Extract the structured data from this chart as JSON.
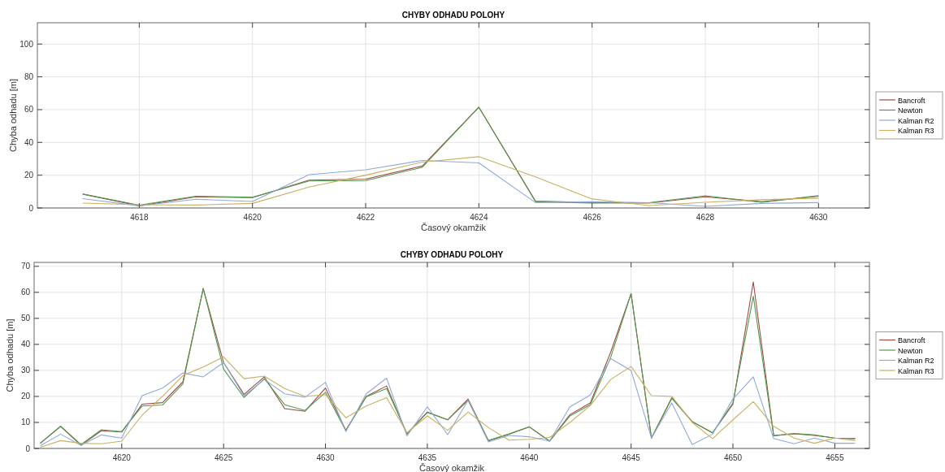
{
  "chart_data": [
    {
      "type": "line",
      "title": "CHYBY ODHADU POLOHY",
      "xlabel": "Časový okamžik",
      "ylabel": "Chyba odhadu [m]",
      "x": [
        4617,
        4618,
        4619,
        4620,
        4621,
        4622,
        4623,
        4624,
        4625,
        4626,
        4627,
        4628,
        4629,
        4630
      ],
      "xlim": [
        4616.2,
        4630.9
      ],
      "ylim": [
        0,
        113
      ],
      "xticks": [
        4618,
        4620,
        4622,
        4624,
        4626,
        4628,
        4630
      ],
      "yticks": [
        0,
        20,
        40,
        60,
        80,
        100
      ],
      "grid": true,
      "legend": "right",
      "line_style": "solid",
      "series": [
        {
          "name": "Bancroft",
          "color": "#9e4a40",
          "values": [
            8.5,
            1.3,
            6.8,
            6.3,
            17,
            17.6,
            25.6,
            61.5,
            4.2,
            3.3,
            3,
            6.8,
            3.8,
            7.2
          ]
        },
        {
          "name": "Newton",
          "color": "#4f9a4f",
          "values": [
            8.5,
            1.7,
            7.2,
            6.5,
            16.5,
            16.7,
            24.8,
            61.5,
            3.8,
            3,
            3.2,
            7.4,
            3.5,
            7.5
          ]
        },
        {
          "name": "Kalman R2",
          "color": "#8fa9d8",
          "values": [
            5.7,
            1.3,
            5.3,
            4,
            20.3,
            23.3,
            29,
            27.5,
            3.3,
            3.8,
            3.2,
            1,
            2.8,
            3.3
          ]
        },
        {
          "name": "Kalman R3",
          "color": "#c8b060",
          "values": [
            3,
            2,
            1.8,
            2.8,
            12.8,
            20,
            28,
            31.3,
            19,
            5.5,
            1.5,
            3.5,
            5,
            6
          ]
        }
      ]
    },
    {
      "type": "line",
      "title": "CHYBY ODHADU POLOHY",
      "xlabel": "Časový okamžik",
      "ylabel": "Chyba odhadu [m]",
      "x": [
        4616,
        4617,
        4618,
        4619,
        4620,
        4621,
        4622,
        4623,
        4624,
        4625,
        4626,
        4627,
        4628,
        4629,
        4630,
        4631,
        4632,
        4633,
        4634,
        4635,
        4636,
        4637,
        4638,
        4639,
        4640,
        4641,
        4642,
        4643,
        4644,
        4645,
        4646,
        4647,
        4648,
        4649,
        4650,
        4651,
        4652,
        4653,
        4654,
        4655,
        4656
      ],
      "xlim": [
        4615.7,
        4656.7
      ],
      "ylim": [
        0,
        71.5
      ],
      "xticks": [
        4620,
        4625,
        4630,
        4635,
        4640,
        4645,
        4650,
        4655
      ],
      "yticks": [
        0,
        10,
        20,
        30,
        40,
        50,
        60,
        70
      ],
      "grid": true,
      "legend": "right",
      "line_style": "solid",
      "series": [
        {
          "name": "Bancroft",
          "color": "#9e4a40",
          "values": [
            2,
            8.5,
            1.2,
            6.8,
            6.3,
            17,
            17.6,
            25.6,
            61.5,
            33,
            20.8,
            27.5,
            15.3,
            14.3,
            23.2,
            7,
            20,
            24,
            5.5,
            14,
            11,
            19,
            3,
            5.5,
            8.3,
            2.8,
            13,
            17.5,
            37,
            59.5,
            4,
            19.5,
            10.3,
            6,
            17,
            64,
            5,
            5.6,
            5,
            4,
            3.8
          ]
        },
        {
          "name": "Newton",
          "color": "#4f9a4f",
          "values": [
            2,
            8.5,
            1.5,
            7.2,
            6.5,
            16.3,
            16.7,
            24.8,
            61.5,
            30.5,
            19.6,
            26.8,
            16.8,
            14.6,
            21.6,
            6.8,
            19.8,
            23,
            5.8,
            13.8,
            11,
            18.5,
            3,
            5.5,
            8.3,
            2.8,
            12.5,
            16.8,
            35,
            59.5,
            4,
            19.2,
            10.3,
            6,
            17.5,
            58.5,
            4.8,
            5.8,
            5.2,
            4,
            3.8
          ]
        },
        {
          "name": "Kalman R2",
          "color": "#8fa9d8",
          "values": [
            1,
            5.5,
            1.2,
            5.2,
            4,
            20.3,
            23.2,
            29,
            27.5,
            33,
            20.2,
            26.5,
            21,
            19.7,
            25.4,
            6.5,
            21,
            27,
            4.8,
            16,
            5.3,
            18.5,
            2.5,
            5,
            4.5,
            2.8,
            16,
            20.5,
            34.5,
            30,
            4,
            17.5,
            1.5,
            5.5,
            19,
            27.5,
            3.8,
            1.8,
            4,
            2,
            2
          ]
        },
        {
          "name": "Kalman R3",
          "color": "#c8b060",
          "values": [
            0.5,
            3,
            2,
            1.8,
            2.8,
            12.8,
            20,
            28,
            31.3,
            35.2,
            26.8,
            27.8,
            23,
            20,
            20.7,
            11.8,
            16.3,
            19.5,
            6,
            12.5,
            7,
            14,
            8,
            3.2,
            3.5,
            4.2,
            10,
            16.5,
            26.5,
            31.5,
            20.3,
            20,
            10,
            3.8,
            11,
            18,
            8.5,
            4,
            2,
            4,
            3
          ]
        }
      ]
    }
  ]
}
